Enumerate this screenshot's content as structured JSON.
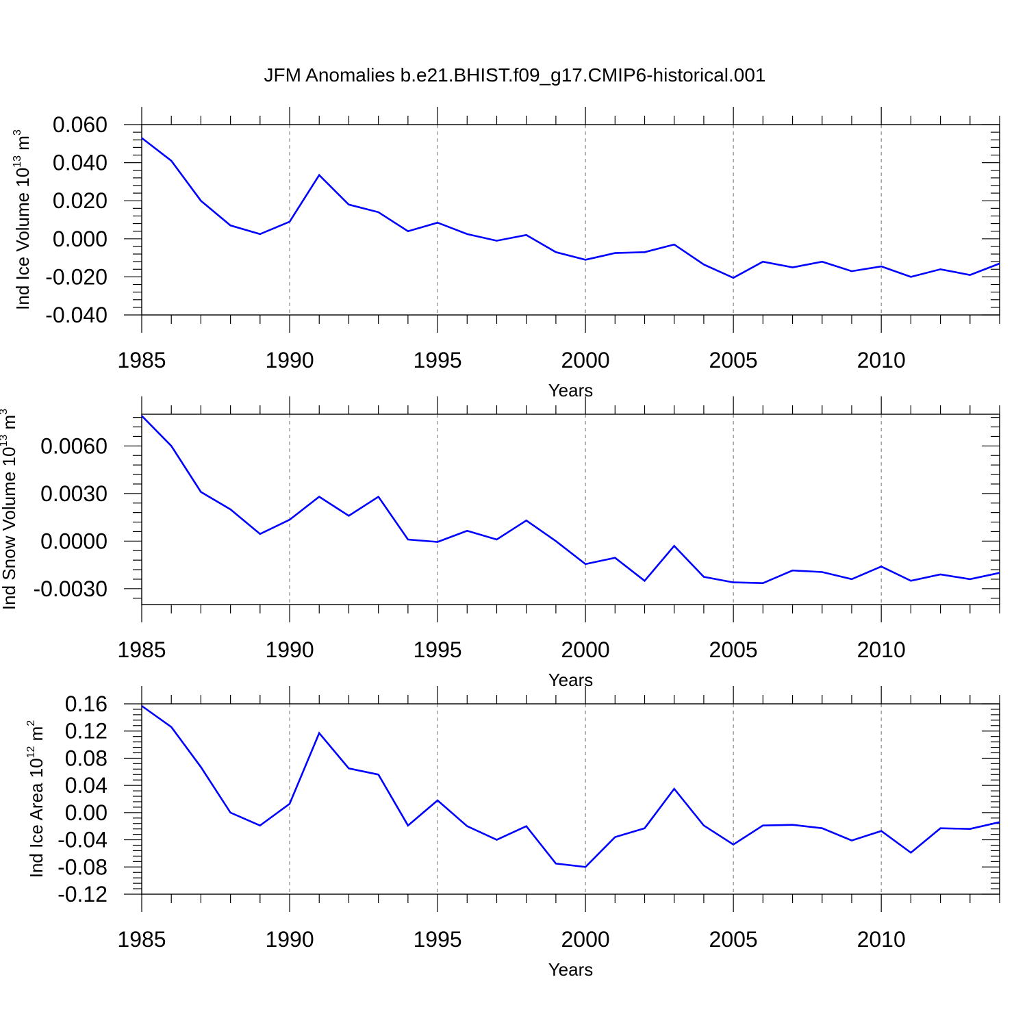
{
  "title": "JFM Anomalies b.e21.BHIST.f09_g17.CMIP6-historical.001",
  "line_color": "#0000ff",
  "chart_data": [
    {
      "type": "line",
      "xlabel": "Years",
      "ylabel_main": "Ind Ice Volume 10",
      "ylabel_exp": "13",
      "ylabel_unit": " m",
      "ylabel_unit_exp": "3",
      "xlim": [
        1985,
        2014
      ],
      "ylim": [
        -0.04,
        0.06
      ],
      "x_ticks": [
        1985,
        1990,
        1995,
        2000,
        2005,
        2010
      ],
      "x_tick_labels": [
        "1985",
        "1990",
        "1995",
        "2000",
        "2005",
        "2010"
      ],
      "y_ticks": [
        -0.04,
        -0.02,
        0.0,
        0.02,
        0.04,
        0.06
      ],
      "y_tick_labels": [
        "-0.040",
        "-0.020",
        "0.000",
        "0.020",
        "0.040",
        "0.060"
      ],
      "grid": "vertical dashed at major x ticks",
      "x": [
        1985,
        1986,
        1987,
        1988,
        1989,
        1990,
        1991,
        1992,
        1993,
        1994,
        1995,
        1996,
        1997,
        1998,
        1999,
        2000,
        2001,
        2002,
        2003,
        2004,
        2005,
        2006,
        2007,
        2008,
        2009,
        2010,
        2011,
        2012,
        2013,
        2014
      ],
      "y": [
        0.053,
        0.041,
        0.02,
        0.007,
        0.0025,
        0.009,
        0.0335,
        0.018,
        0.014,
        0.004,
        0.0085,
        0.0025,
        -0.001,
        0.002,
        -0.007,
        -0.011,
        -0.0075,
        -0.007,
        -0.003,
        -0.0135,
        -0.0205,
        -0.012,
        -0.015,
        -0.012,
        -0.017,
        -0.0145,
        -0.02,
        -0.016,
        -0.019,
        -0.013
      ]
    },
    {
      "type": "line",
      "xlabel": "Years",
      "ylabel_main": "Ind Snow Volume 10",
      "ylabel_exp": "13",
      "ylabel_unit": " m",
      "ylabel_unit_exp": "3",
      "xlim": [
        1985,
        2014
      ],
      "ylim": [
        -0.004,
        0.008
      ],
      "x_ticks": [
        1985,
        1990,
        1995,
        2000,
        2005,
        2010
      ],
      "x_tick_labels": [
        "1985",
        "1990",
        "1995",
        "2000",
        "2005",
        "2010"
      ],
      "y_ticks": [
        -0.003,
        0.0,
        0.003,
        0.006
      ],
      "y_tick_labels": [
        "-0.0030",
        "0.0000",
        "0.0030",
        "0.0060"
      ],
      "grid": "vertical dashed at major x ticks",
      "x": [
        1985,
        1986,
        1987,
        1988,
        1989,
        1990,
        1991,
        1992,
        1993,
        1994,
        1995,
        1996,
        1997,
        1998,
        1999,
        2000,
        2001,
        2002,
        2003,
        2004,
        2005,
        2006,
        2007,
        2008,
        2009,
        2010,
        2011,
        2012,
        2013,
        2014
      ],
      "y": [
        0.0079,
        0.006,
        0.0031,
        0.002,
        0.00045,
        0.00135,
        0.0028,
        0.0016,
        0.0028,
        0.0001,
        -5e-05,
        0.00065,
        0.0001,
        0.0013,
        0.0,
        -0.00145,
        -0.00105,
        -0.0025,
        -0.0003,
        -0.00225,
        -0.0026,
        -0.00265,
        -0.00185,
        -0.00195,
        -0.0024,
        -0.0016,
        -0.0025,
        -0.0021,
        -0.0024,
        -0.002
      ]
    },
    {
      "type": "line",
      "xlabel": "Years",
      "ylabel_main": "Ind Ice Area 10",
      "ylabel_exp": "12",
      "ylabel_unit": " m",
      "ylabel_unit_exp": "2",
      "xlim": [
        1985,
        2014
      ],
      "ylim": [
        -0.12,
        0.16
      ],
      "x_ticks": [
        1985,
        1990,
        1995,
        2000,
        2005,
        2010
      ],
      "x_tick_labels": [
        "1985",
        "1990",
        "1995",
        "2000",
        "2005",
        "2010"
      ],
      "y_ticks": [
        -0.12,
        -0.08,
        -0.04,
        0.0,
        0.04,
        0.08,
        0.12,
        0.16
      ],
      "y_tick_labels": [
        "-0.12",
        "-0.08",
        "-0.04",
        "0.00",
        "0.04",
        "0.08",
        "0.12",
        "0.16"
      ],
      "grid": "vertical dashed at major x ticks",
      "x": [
        1985,
        1986,
        1987,
        1988,
        1989,
        1990,
        1991,
        1992,
        1993,
        1994,
        1995,
        1996,
        1997,
        1998,
        1999,
        2000,
        2001,
        2002,
        2003,
        2004,
        2005,
        2006,
        2007,
        2008,
        2009,
        2010,
        2011,
        2012,
        2013,
        2014
      ],
      "y": [
        0.157,
        0.126,
        0.067,
        0.0,
        -0.019,
        0.013,
        0.117,
        0.065,
        0.056,
        -0.019,
        0.018,
        -0.02,
        -0.04,
        -0.02,
        -0.075,
        -0.08,
        -0.036,
        -0.023,
        0.035,
        -0.019,
        -0.047,
        -0.019,
        -0.018,
        -0.023,
        -0.041,
        -0.027,
        -0.059,
        -0.023,
        -0.024,
        -0.014
      ]
    }
  ]
}
